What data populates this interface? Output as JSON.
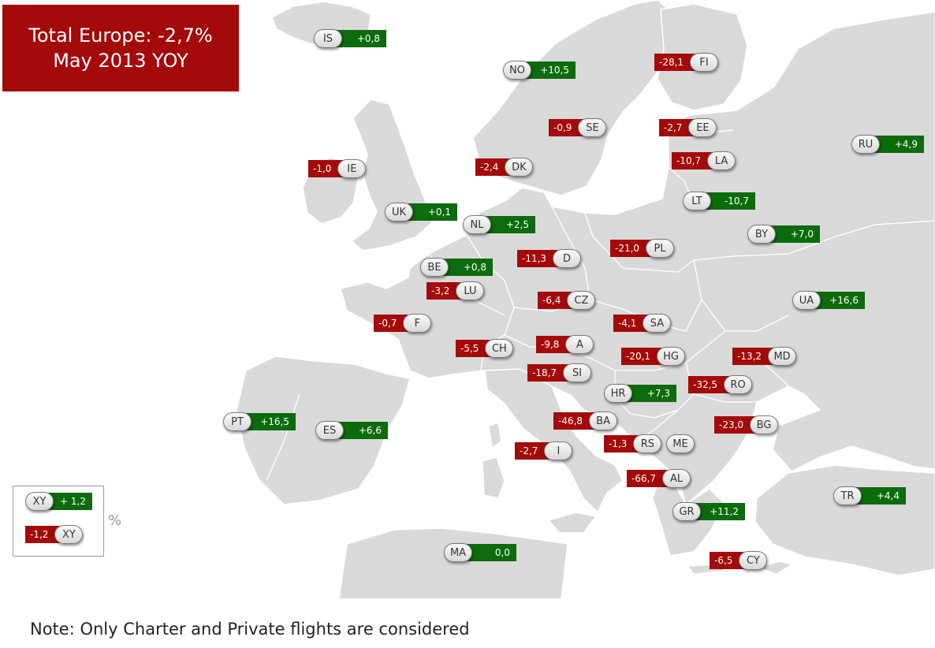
{
  "title": {
    "line1": "Total Europe: -2,7%",
    "line2": "May 2013 YOY"
  },
  "note": "Note: Only Charter and Private flights are considered",
  "legend": {
    "positive_code": "XY",
    "positive_value": "+ 1,2",
    "negative_code": "XY",
    "negative_value": "-1,2",
    "unit": "%"
  },
  "colors": {
    "positive": "#0c6b0c",
    "negative": "#a30a09",
    "land": "#d9d9d9",
    "border": "#ffffff"
  },
  "countries": [
    {
      "code": "IS",
      "value": "+0,8"
    },
    {
      "code": "NO",
      "value": "+10,5"
    },
    {
      "code": "FI",
      "value": "-28,1"
    },
    {
      "code": "SE",
      "value": "-0,9"
    },
    {
      "code": "EE",
      "value": "-2,7"
    },
    {
      "code": "RU",
      "value": "+4,9"
    },
    {
      "code": "IE",
      "value": "-1,0"
    },
    {
      "code": "DK",
      "value": "-2,4"
    },
    {
      "code": "LA",
      "value": "-10,7"
    },
    {
      "code": "LT",
      "value": "-10,7"
    },
    {
      "code": "UK",
      "value": "+0,1"
    },
    {
      "code": "NL",
      "value": "+2,5"
    },
    {
      "code": "BY",
      "value": "+7,0"
    },
    {
      "code": "BE",
      "value": "+0,8"
    },
    {
      "code": "D",
      "value": "-11,3"
    },
    {
      "code": "PL",
      "value": "-21,0"
    },
    {
      "code": "LU",
      "value": "-3,2"
    },
    {
      "code": "CZ",
      "value": "-6,4"
    },
    {
      "code": "UA",
      "value": "+16,6"
    },
    {
      "code": "F",
      "value": "-0,7"
    },
    {
      "code": "SA",
      "value": "-4,1"
    },
    {
      "code": "CH",
      "value": "-5,5"
    },
    {
      "code": "A",
      "value": "-9,8"
    },
    {
      "code": "HG",
      "value": "-20,1"
    },
    {
      "code": "MD",
      "value": "-13,2"
    },
    {
      "code": "SI",
      "value": "-18,7"
    },
    {
      "code": "RO",
      "value": "-32,5"
    },
    {
      "code": "HR",
      "value": "+7,3"
    },
    {
      "code": "PT",
      "value": "+16,5"
    },
    {
      "code": "ES",
      "value": "+6,6"
    },
    {
      "code": "BA",
      "value": "-46,8"
    },
    {
      "code": "BG",
      "value": "-23,0"
    },
    {
      "code": "I",
      "value": "-2,7"
    },
    {
      "code": "RS",
      "value": "-1,3"
    },
    {
      "code": "ME",
      "value": ""
    },
    {
      "code": "AL",
      "value": "-66,7"
    },
    {
      "code": "TR",
      "value": "+4,4"
    },
    {
      "code": "GR",
      "value": "+11,2"
    },
    {
      "code": "MA",
      "value": "0,0"
    },
    {
      "code": "CY",
      "value": "-6,5"
    }
  ]
}
